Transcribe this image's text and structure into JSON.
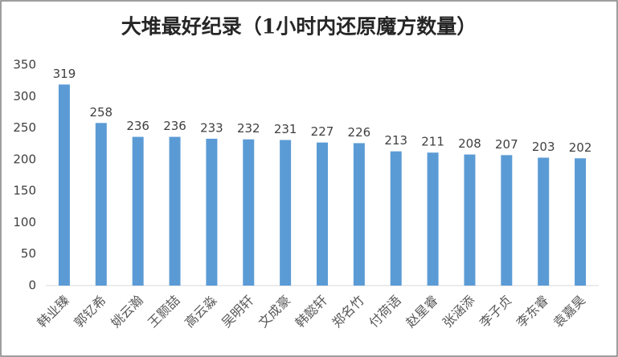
{
  "chart_data": {
    "type": "bar",
    "title": "大堆最好纪录（1小时内还原魔方数量）",
    "categories": [
      "韩业臻",
      "郭钇希",
      "姚云瀚",
      "王颢喆",
      "高云淼",
      "吴明轩",
      "文成豪",
      "韩懿轩",
      "郑名竹",
      "付荷语",
      "赵星睿",
      "张涵添",
      "李子贞",
      "李东睿",
      "袁嘉昊"
    ],
    "values": [
      319,
      258,
      236,
      236,
      233,
      232,
      231,
      227,
      226,
      213,
      211,
      208,
      207,
      203,
      202
    ],
    "color": "#5b9bd5",
    "ylim": [
      0,
      350
    ],
    "yticks": [
      0,
      50,
      100,
      150,
      200,
      250,
      300,
      350
    ],
    "grid": false
  }
}
